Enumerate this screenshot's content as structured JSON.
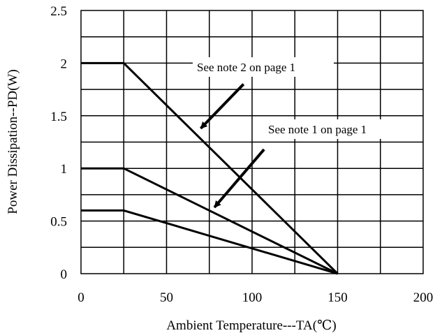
{
  "chart_data": {
    "type": "line",
    "xlabel": "Ambient Temperature---TA(℃)",
    "ylabel": "Power Dissipation--PD(W)",
    "xlim": [
      0,
      200
    ],
    "ylim": [
      0,
      2.5
    ],
    "xticks": [
      0,
      25,
      50,
      75,
      100,
      125,
      150,
      175,
      200
    ],
    "yticks": [
      0,
      0.25,
      0.5,
      0.75,
      1,
      1.25,
      1.5,
      1.75,
      2,
      2.25,
      2.5
    ],
    "xtick_labels": [
      "0",
      "50",
      "100",
      "150",
      "200"
    ],
    "xtick_label_values": [
      0,
      50,
      100,
      150,
      200
    ],
    "ytick_labels": [
      "0",
      "0.5",
      "1",
      "1.5",
      "2",
      "2.5"
    ],
    "ytick_label_values": [
      0,
      0.5,
      1,
      1.5,
      2,
      2.5
    ],
    "grid": true,
    "series": [
      {
        "x": [
          0,
          25,
          150
        ],
        "y": [
          2.0,
          2.0,
          0
        ]
      },
      {
        "x": [
          0,
          25,
          150
        ],
        "y": [
          1.0,
          1.0,
          0
        ]
      },
      {
        "x": [
          0,
          25,
          150
        ],
        "y": [
          0.6,
          0.6,
          0
        ]
      }
    ],
    "annotations": [
      {
        "text": "See note 2 on page 1",
        "arrow_from": [
          95,
          1.8
        ],
        "arrow_to": [
          70,
          1.38
        ]
      },
      {
        "text": "See note 1 on page 1",
        "arrow_from": [
          107,
          1.18
        ],
        "arrow_to": [
          78,
          0.63
        ]
      }
    ]
  }
}
